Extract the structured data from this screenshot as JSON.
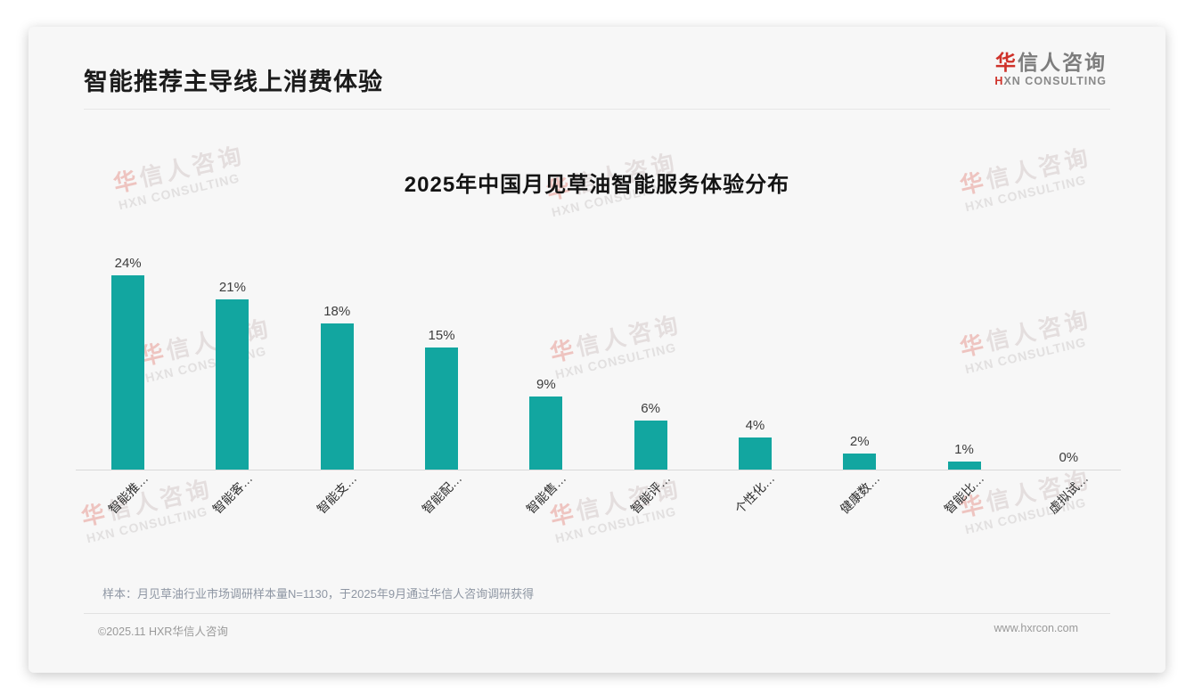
{
  "page": {
    "slide_title": "智能推荐主导线上消费体验",
    "sample_note": "样本：月见草油行业市场调研样本量N=1130，于2025年9月通过华信人咨询调研获得",
    "footer_left": "©2025.11 HXR华信人咨询",
    "footer_right": "www.hxrcon.com"
  },
  "logo": {
    "cn_first": "华",
    "cn_rest": "信人咨询",
    "en_first": "H",
    "en_rest": "XN CONSULTING"
  },
  "watermark": {
    "line1_first": "华",
    "line1_rest": "信人咨询",
    "line2": "HXN CONSULTING"
  },
  "colors": {
    "bar": "#12A6A0",
    "accent_red": "#CF322A"
  },
  "chart_data": {
    "type": "bar",
    "title": "2025年中国月见草油智能服务体验分布",
    "categories": [
      "智能推…",
      "智能客…",
      "智能支…",
      "智能配…",
      "智能售…",
      "智能评…",
      "个性化…",
      "健康数…",
      "智能比…",
      "虚拟试…"
    ],
    "values": [
      24,
      21,
      18,
      15,
      9,
      6,
      4,
      2,
      1,
      0
    ],
    "unit": "%",
    "xlabel": "",
    "ylabel": "",
    "ylim": [
      0,
      26
    ],
    "grid": false,
    "legend": false,
    "data_labels": true,
    "bar_color": "#12A6A0",
    "label_rotation_deg": -45
  }
}
